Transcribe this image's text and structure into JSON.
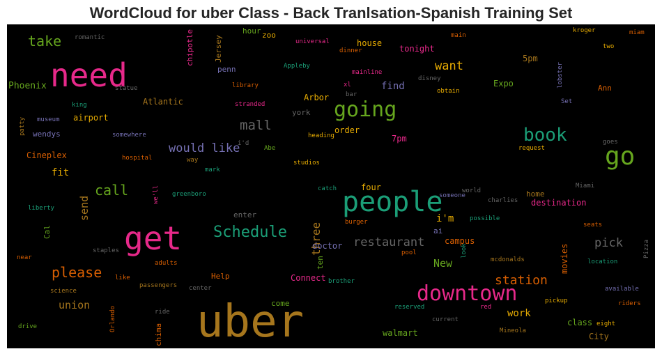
{
  "title": "WordCloud for uber Class - Back Tranlsation-Spanish Training Set",
  "colors": {
    "pink": "#e7298a",
    "green": "#1b9e77",
    "orange": "#d95f02",
    "purple": "#7570b3",
    "lime": "#66a61e",
    "gold": "#e6ab02",
    "brown": "#a6761d",
    "gray": "#666666"
  },
  "words": [
    "uber",
    "need",
    "get",
    "people",
    "downtown",
    "go",
    "going",
    "book",
    "Schedule",
    "take",
    "call",
    "mall",
    "would like",
    "please",
    "restaurant",
    "station",
    "want",
    "pick",
    "three",
    "send",
    "union",
    "Phoenix",
    "find",
    "Atlantic",
    "airport",
    "wendys",
    "Cineplex",
    "fit",
    "house",
    "tonight",
    "hour",
    "zoo",
    "Jersey",
    "penn",
    "chipotle",
    "Arbor",
    "order",
    "7pm",
    "5pm",
    "Expo",
    "Ann",
    "four",
    "i'm",
    "home",
    "destination",
    "doctor",
    "ten",
    "campus",
    "New",
    "movies",
    "work",
    "class",
    "City",
    "come",
    "walmart",
    "Connect",
    "Help",
    "chima",
    "Cal",
    "romantic",
    "universal",
    "dinner",
    "main",
    "kroger",
    "miam",
    "two",
    "Appleby",
    "mainline",
    "disney",
    "xl",
    "bar",
    "obtain",
    "library",
    "stranded",
    "york",
    "statue",
    "lobster",
    "king",
    "museum",
    "patty",
    "somewhere",
    "heading",
    "Set",
    "i'd",
    "Abe",
    "hospital",
    "way",
    "studios",
    "request",
    "goes",
    "mark",
    "greenboro",
    "we'll",
    "catch",
    "world",
    "Miami",
    "liberty",
    "enter",
    "someone",
    "charlies",
    "burger",
    "possible",
    "seats",
    "ai",
    "staples",
    "pool",
    "near",
    "adults",
    "like",
    "science",
    "passengers",
    "center",
    "brother",
    "mcdonalds",
    "location",
    "Pizza",
    "available",
    "look",
    "reserved",
    "red",
    "pickup",
    "riders",
    "Orlando",
    "ride",
    "current",
    "eight",
    "drive",
    "Mineola"
  ]
}
